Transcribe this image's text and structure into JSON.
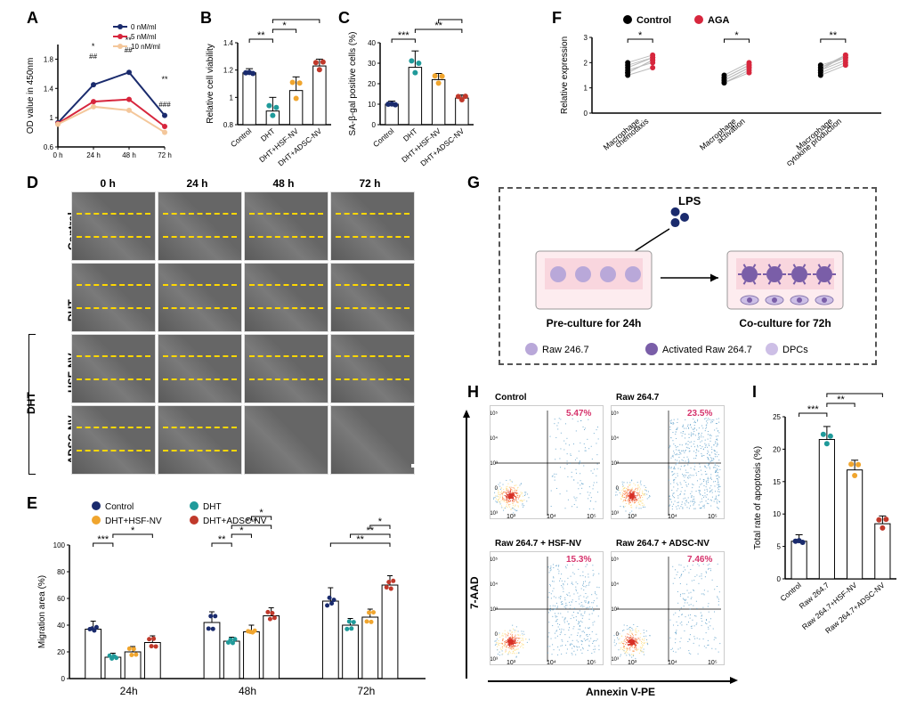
{
  "palette": {
    "control": "#1a2b6d",
    "dht": "#1f9a9a",
    "hsf": "#f0a52e",
    "adsc": "#c0392b",
    "aga": "#d7263d",
    "black": "#000000"
  },
  "labels": {
    "A": "A",
    "B": "B",
    "C": "C",
    "D": "D",
    "E": "E",
    "F": "F",
    "G": "G",
    "H": "H",
    "I": "I"
  },
  "panelA": {
    "type": "line",
    "ylabel": "OD value in 450nm",
    "xticks": [
      "0 h",
      "24 h",
      "48 h",
      "72 h"
    ],
    "ylim": [
      0.6,
      2.0
    ],
    "ytick_step": 0.4,
    "series": [
      {
        "name": "0 nM/ml",
        "color": "#1a2b6d",
        "values": [
          0.93,
          1.45,
          1.62,
          1.03
        ]
      },
      {
        "name": "5 nM/ml",
        "color": "#d7263d",
        "values": [
          0.92,
          1.22,
          1.25,
          0.88
        ]
      },
      {
        "name": "10 nM/ml",
        "color": "#f4c79b",
        "values": [
          0.91,
          1.15,
          1.1,
          0.8
        ]
      }
    ],
    "annotations": [
      "*",
      "##",
      "**",
      "##",
      "**",
      "###"
    ]
  },
  "panelB": {
    "type": "bar-scatter",
    "ylabel": "Relative cell viability",
    "categories": [
      "Control",
      "DHT",
      "DHT+HSF-NV",
      "DHT+ADSC-NV"
    ],
    "values": [
      1.18,
      0.9,
      1.05,
      1.23
    ],
    "err": [
      0.03,
      0.1,
      0.1,
      0.05
    ],
    "point_colors": [
      "#1a2b6d",
      "#1f9a9a",
      "#f0a52e",
      "#c0392b"
    ],
    "ylim": [
      0.8,
      1.4
    ],
    "ytick_step": 0.2,
    "sig": [
      {
        "from": 0,
        "to": 1,
        "label": "**"
      },
      {
        "from": 1,
        "to": 2,
        "label": "*"
      },
      {
        "from": 1,
        "to": 3,
        "label": "**"
      },
      {
        "from": 2,
        "to": 3,
        "label": "*"
      }
    ]
  },
  "panelC": {
    "type": "bar-scatter",
    "ylabel": "SA-β-gal positive cells (%)",
    "categories": [
      "Control",
      "DHT",
      "DHT+HSF-NV",
      "DHT+ADSC-NV"
    ],
    "values": [
      10,
      28,
      22,
      13
    ],
    "err": [
      1.5,
      8,
      3,
      1.5
    ],
    "point_colors": [
      "#1a2b6d",
      "#1f9a9a",
      "#f0a52e",
      "#c0392b"
    ],
    "ylim": [
      0,
      40
    ],
    "ytick_step": 10,
    "sig": [
      {
        "from": 0,
        "to": 1,
        "label": "***"
      },
      {
        "from": 1,
        "to": 3,
        "label": "**"
      },
      {
        "from": 2,
        "to": 3,
        "label": "*"
      }
    ]
  },
  "panelD": {
    "row_headers": [
      "Control",
      "DHT",
      "HSF-NV",
      "ADSC-NV"
    ],
    "left_group": "DHT",
    "col_headers": [
      "0 h",
      "24 h",
      "48 h",
      "72 h"
    ],
    "closed_rows_cols": [
      [
        3,
        2
      ],
      [
        3,
        3
      ]
    ]
  },
  "panelE": {
    "type": "grouped-bar",
    "ylabel": "Migration area (%)",
    "legend": [
      "Control",
      "DHT",
      "DHT+HSF-NV",
      "DHT+ADSC-NV"
    ],
    "colors": [
      "#1a2b6d",
      "#1f9a9a",
      "#f0a52e",
      "#c0392b"
    ],
    "groups": [
      "24h",
      "48h",
      "72h"
    ],
    "values": [
      [
        37,
        16,
        20,
        27
      ],
      [
        42,
        28,
        35,
        47
      ],
      [
        58,
        40,
        46,
        70
      ]
    ],
    "err": [
      [
        6,
        3,
        4,
        5
      ],
      [
        8,
        3,
        5,
        6
      ],
      [
        10,
        5,
        6,
        7
      ]
    ],
    "ylim": [
      0,
      100
    ],
    "ytick_step": 20,
    "sig_rows": [
      [
        {
          "f": 0,
          "t": 1,
          "l": "***"
        },
        {
          "f": 1,
          "t": 3,
          "l": "*"
        }
      ],
      [
        {
          "f": 0,
          "t": 1,
          "l": "**"
        },
        {
          "f": 1,
          "t": 2,
          "l": "*"
        },
        {
          "f": 1,
          "t": 3,
          "l": "***"
        },
        {
          "f": 2,
          "t": 3,
          "l": "*"
        }
      ],
      [
        {
          "f": 0,
          "t": 3,
          "l": "**"
        },
        {
          "f": 1,
          "t": 3,
          "l": "**"
        },
        {
          "f": 2,
          "t": 3,
          "l": "*"
        }
      ]
    ]
  },
  "panelF": {
    "type": "paired-scatter",
    "legend": [
      "Control",
      "AGA"
    ],
    "colors": [
      "#000000",
      "#d7263d"
    ],
    "ylabel": "Relative expression",
    "groups": [
      "Macrophage\nchemotaxis",
      "Macrophage\nactivation",
      "Macrophage\ncytokine production"
    ],
    "ylim": [
      0,
      3
    ],
    "ytick_step": 1,
    "pairs": [
      [
        [
          1.5,
          1.8
        ],
        [
          1.8,
          2.2
        ],
        [
          1.6,
          2.1
        ],
        [
          2.0,
          2.3
        ],
        [
          1.7,
          2.0
        ],
        [
          1.9,
          2.2
        ],
        [
          1.6,
          2.1
        ]
      ],
      [
        [
          1.2,
          1.6
        ],
        [
          1.4,
          1.9
        ],
        [
          1.3,
          1.8
        ],
        [
          1.5,
          2.0
        ],
        [
          1.2,
          1.7
        ],
        [
          1.4,
          1.9
        ],
        [
          1.3,
          1.8
        ]
      ],
      [
        [
          1.6,
          2.0
        ],
        [
          1.8,
          2.2
        ],
        [
          1.7,
          2.3
        ],
        [
          1.9,
          2.2
        ],
        [
          1.5,
          1.9
        ],
        [
          1.8,
          2.3
        ],
        [
          1.7,
          2.1
        ]
      ]
    ],
    "sig": [
      "*",
      "*",
      "**"
    ]
  },
  "panelG": {
    "title": "LPS",
    "left_label": "Pre-culture for 24h",
    "right_label": "Co-culture for 72h",
    "legend": [
      {
        "name": "Raw 246.7",
        "color": "#b9a8d9"
      },
      {
        "name": "Activated Raw 264.7",
        "color": "#7a5ea8"
      },
      {
        "name": "DPCs",
        "color": "#cdbfe6"
      }
    ]
  },
  "panelH": {
    "ylabel": "7-AAD",
    "xlabel": "Annexin V-PE",
    "plots": [
      {
        "title": "Control",
        "pct": "5.47%"
      },
      {
        "title": "Raw 264.7",
        "pct": "23.5%"
      },
      {
        "title": "Raw 264.7 + HSF-NV",
        "pct": "15.3%"
      },
      {
        "title": "Raw 264.7 + ADSC-NV",
        "pct": "7.46%"
      }
    ]
  },
  "panelI": {
    "type": "bar-scatter",
    "ylabel": "Total rate of apoptosis (%)",
    "categories": [
      "Control",
      "Raw 264.7",
      "Raw 264.7+HSF-NV",
      "Raw 264.7+ADSC-NV"
    ],
    "values": [
      5.8,
      21.5,
      16.8,
      8.5
    ],
    "err": [
      1,
      2,
      1.5,
      1.2
    ],
    "point_colors": [
      "#1a2b6d",
      "#1f9a9a",
      "#f0a52e",
      "#c0392b"
    ],
    "ylim": [
      0,
      25
    ],
    "ytick_step": 5,
    "sig": [
      {
        "from": 0,
        "to": 1,
        "label": "***"
      },
      {
        "from": 1,
        "to": 2,
        "label": "**"
      },
      {
        "from": 1,
        "to": 3,
        "label": "***"
      },
      {
        "from": 2,
        "to": 3,
        "label": "***"
      }
    ]
  }
}
